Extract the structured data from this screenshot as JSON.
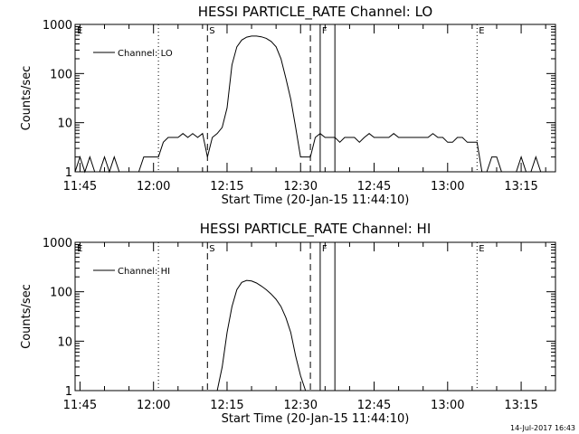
{
  "footer": {
    "timestamp": "14-Jul-2017 16:43"
  },
  "chart_data": [
    {
      "type": "line",
      "title": "HESSI PARTICLE_RATE Channel: LO",
      "xlabel": "Start Time (20-Jan-15 11:44:10)",
      "ylabel": "Counts/sec",
      "y_scale": "log",
      "ylim": [
        1,
        1000
      ],
      "xlim_minutes_since_start": [
        0,
        98
      ],
      "x_ticks": [
        "11:45",
        "12:00",
        "12:15",
        "12:30",
        "12:45",
        "13:00",
        "13:15"
      ],
      "y_ticks": [
        "1",
        "10",
        "100",
        "1000"
      ],
      "legend": {
        "position": "top-left",
        "entries": [
          "Channel: LO"
        ]
      },
      "markers": [
        {
          "label": "E",
          "time": "11:44",
          "style": "dotted"
        },
        {
          "label": "",
          "time": "12:01",
          "style": "dotted"
        },
        {
          "label": "S",
          "time": "12:11",
          "style": "dashed"
        },
        {
          "label": "",
          "time": "12:32",
          "style": "dashed"
        },
        {
          "label": "F",
          "time": "12:34",
          "style": "solid"
        },
        {
          "label": "",
          "time": "12:37",
          "style": "solid"
        },
        {
          "label": "E",
          "time": "13:06",
          "style": "dotted"
        },
        {
          "label": "",
          "time": "13:22",
          "style": "dotted"
        }
      ],
      "series": [
        {
          "name": "Channel: LO",
          "x": [
            "11:44",
            "11:45",
            "11:46",
            "11:47",
            "11:48",
            "11:49",
            "11:50",
            "11:51",
            "11:52",
            "11:53",
            "11:54",
            "11:55",
            "11:56",
            "11:57",
            "11:58",
            "11:59",
            "12:00",
            "12:01",
            "12:02",
            "12:03",
            "12:04",
            "12:05",
            "12:06",
            "12:07",
            "12:08",
            "12:09",
            "12:10",
            "12:11",
            "12:12",
            "12:13",
            "12:14",
            "12:15",
            "12:16",
            "12:17",
            "12:18",
            "12:19",
            "12:20",
            "12:21",
            "12:22",
            "12:23",
            "12:24",
            "12:25",
            "12:26",
            "12:27",
            "12:28",
            "12:29",
            "12:30",
            "12:31",
            "12:32",
            "12:33",
            "12:34",
            "12:35",
            "12:36",
            "12:37",
            "12:38",
            "12:39",
            "12:40",
            "12:41",
            "12:42",
            "12:43",
            "12:44",
            "12:45",
            "12:46",
            "12:47",
            "12:48",
            "12:49",
            "12:50",
            "12:51",
            "12:52",
            "12:53",
            "12:54",
            "12:55",
            "12:56",
            "12:57",
            "12:58",
            "12:59",
            "13:00",
            "13:01",
            "13:02",
            "13:03",
            "13:04",
            "13:05",
            "13:06",
            "13:07",
            "13:08",
            "13:09",
            "13:10",
            "13:11",
            "13:12",
            "13:13",
            "13:14",
            "13:15",
            "13:16",
            "13:17",
            "13:18",
            "13:19",
            "13:20",
            "13:21",
            "13:22"
          ],
          "values": [
            1,
            2,
            1,
            2,
            1,
            1,
            2,
            1,
            2,
            1,
            1,
            1,
            1,
            1,
            2,
            2,
            2,
            2,
            4,
            5,
            5,
            5,
            6,
            5,
            6,
            5,
            6,
            2,
            5,
            6,
            8,
            20,
            150,
            350,
            480,
            550,
            580,
            580,
            560,
            520,
            450,
            350,
            200,
            80,
            30,
            8,
            2,
            2,
            2,
            5,
            6,
            5,
            5,
            5,
            4,
            5,
            5,
            5,
            4,
            5,
            6,
            5,
            5,
            5,
            5,
            6,
            5,
            5,
            5,
            5,
            5,
            5,
            5,
            6,
            5,
            5,
            4,
            4,
            5,
            5,
            4,
            4,
            4,
            1,
            1,
            2,
            2,
            1,
            1,
            1,
            1,
            2,
            1,
            1,
            2,
            1,
            1,
            1,
            1
          ]
        }
      ]
    },
    {
      "type": "line",
      "title": "HESSI PARTICLE_RATE Channel: HI",
      "xlabel": "Start Time (20-Jan-15 11:44:10)",
      "ylabel": "Counts/sec",
      "y_scale": "log",
      "ylim": [
        1,
        1000
      ],
      "xlim_minutes_since_start": [
        0,
        98
      ],
      "x_ticks": [
        "11:45",
        "12:00",
        "12:15",
        "12:30",
        "12:45",
        "13:00",
        "13:15"
      ],
      "y_ticks": [
        "1",
        "10",
        "100",
        "1000"
      ],
      "legend": {
        "position": "top-left",
        "entries": [
          "Channel: HI"
        ]
      },
      "markers": [
        {
          "label": "E",
          "time": "11:44",
          "style": "dotted"
        },
        {
          "label": "",
          "time": "12:01",
          "style": "dotted"
        },
        {
          "label": "S",
          "time": "12:11",
          "style": "dashed"
        },
        {
          "label": "",
          "time": "12:32",
          "style": "dashed"
        },
        {
          "label": "F",
          "time": "12:34",
          "style": "solid"
        },
        {
          "label": "",
          "time": "12:37",
          "style": "solid"
        },
        {
          "label": "E",
          "time": "13:06",
          "style": "dotted"
        },
        {
          "label": "",
          "time": "13:22",
          "style": "dotted"
        }
      ],
      "series": [
        {
          "name": "Channel: HI",
          "x": [
            "12:13",
            "12:14",
            "12:15",
            "12:16",
            "12:17",
            "12:18",
            "12:19",
            "12:20",
            "12:21",
            "12:22",
            "12:23",
            "12:24",
            "12:25",
            "12:26",
            "12:27",
            "12:28",
            "12:29",
            "12:30",
            "12:31"
          ],
          "values": [
            1,
            3,
            15,
            50,
            110,
            155,
            170,
            165,
            150,
            130,
            110,
            90,
            70,
            50,
            30,
            15,
            5,
            2,
            1
          ]
        }
      ]
    }
  ]
}
